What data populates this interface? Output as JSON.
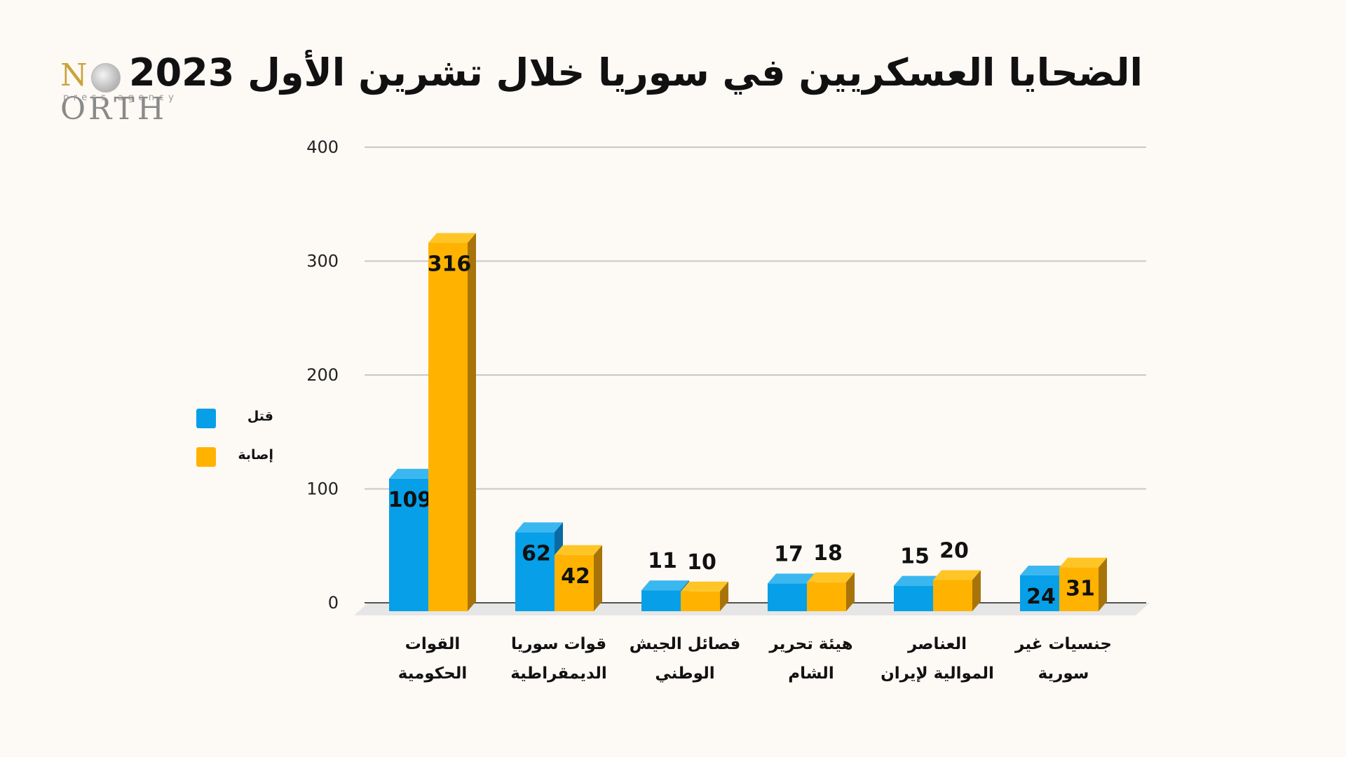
{
  "title": "الضحايا العسكريين في سوريا خلال تشرين الأول 2023",
  "logo": {
    "initial": "N",
    "word_rest": "ORTH",
    "tagline": "press agency"
  },
  "colors": {
    "killed": "#069fe8",
    "injured": "#ffb300",
    "grid": "#c9c9c9",
    "background": "#fdf9f5"
  },
  "legend": [
    {
      "label": "قتل",
      "color": "#069fe8"
    },
    {
      "label": "إصابة",
      "color": "#ffb300"
    }
  ],
  "chart_data": {
    "type": "bar",
    "title": "الضحايا العسكريين في سوريا خلال تشرين الأول 2023",
    "xlabel": "",
    "ylabel": "",
    "ylim": [
      0,
      400
    ],
    "yticks": [
      0,
      100,
      200,
      300,
      400
    ],
    "grid": true,
    "legend_position": "left",
    "categories": [
      "القوات الحكومية",
      "قوات سوريا الديمقراطية",
      "فصائل الجيش الوطني",
      "هيئة تحرير الشام",
      "العناصر الموالية لإيران",
      "جنسيات غير سورية"
    ],
    "category_lines": [
      [
        "القوات",
        "الحكومية"
      ],
      [
        "قوات سوريا",
        "الديمقراطية"
      ],
      [
        "فصائل الجيش",
        "الوطني"
      ],
      [
        "هيئة تحرير",
        "الشام"
      ],
      [
        "العناصر",
        "الموالية لإيران"
      ],
      [
        "جنسيات غير",
        "سورية"
      ]
    ],
    "series": [
      {
        "name": "قتل",
        "values": [
          109,
          62,
          11,
          17,
          15,
          24
        ]
      },
      {
        "name": "إصابة",
        "values": [
          316,
          42,
          10,
          18,
          20,
          31
        ]
      }
    ]
  }
}
